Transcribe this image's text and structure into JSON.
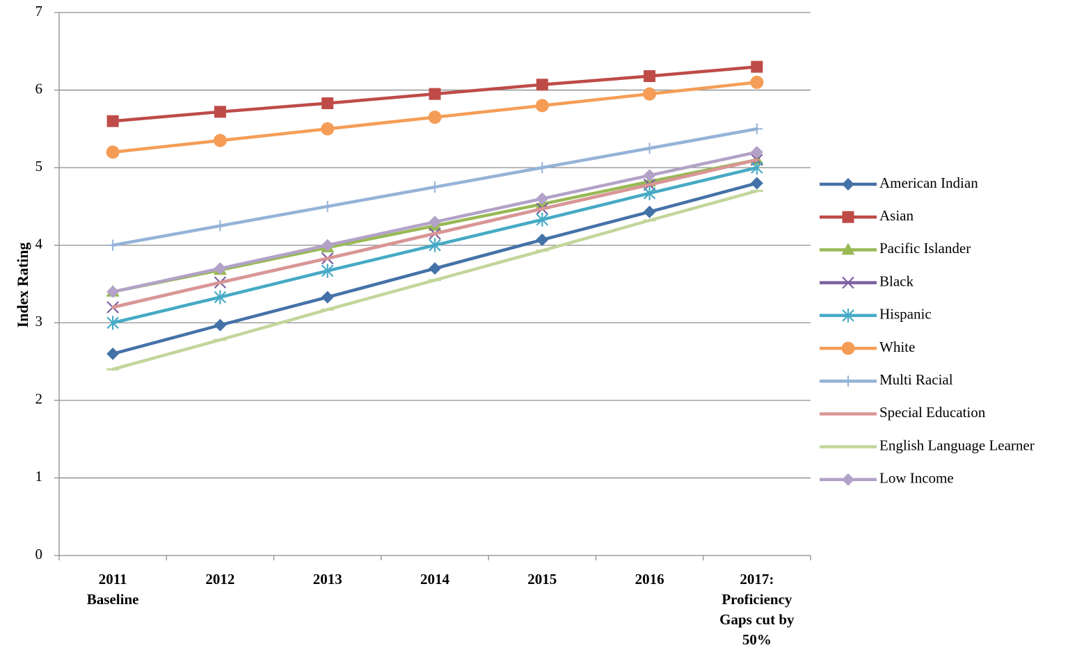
{
  "chart_data": {
    "type": "line",
    "ylabel": "Index Rating",
    "ylim": [
      0,
      7
    ],
    "yticks": [
      0,
      1,
      2,
      3,
      4,
      5,
      6,
      7
    ],
    "grid": "horizontal",
    "legend": "right",
    "categories": [
      [
        "2011",
        "Baseline"
      ],
      [
        "2012"
      ],
      [
        "2013"
      ],
      [
        "2014"
      ],
      [
        "2015"
      ],
      [
        "2016"
      ],
      [
        "2017:",
        "Proficiency",
        "Gaps cut by",
        "50%"
      ]
    ],
    "series": [
      {
        "name": "American Indian",
        "color": "#4472A8",
        "marker": "diamond",
        "values": [
          2.6,
          2.97,
          3.33,
          3.7,
          4.07,
          4.43,
          4.8
        ]
      },
      {
        "name": "Asian",
        "color": "#BE4B48",
        "marker": "square",
        "values": [
          5.6,
          5.72,
          5.83,
          5.95,
          6.07,
          6.18,
          6.3
        ]
      },
      {
        "name": "Pacific Islander",
        "color": "#98B954",
        "marker": "triangle",
        "values": [
          3.4,
          3.68,
          3.97,
          4.25,
          4.53,
          4.82,
          5.1
        ]
      },
      {
        "name": "Black",
        "color": "#7D60A0",
        "marker": "x",
        "values": [
          3.2,
          3.52,
          3.83,
          4.15,
          4.47,
          4.78,
          5.1
        ]
      },
      {
        "name": "Hispanic",
        "color": "#46AAC5",
        "marker": "star",
        "values": [
          3.0,
          3.33,
          3.67,
          4.0,
          4.33,
          4.67,
          5.0
        ]
      },
      {
        "name": "White",
        "color": "#F59D56",
        "marker": "circle",
        "values": [
          5.2,
          5.35,
          5.5,
          5.65,
          5.8,
          5.95,
          6.1
        ]
      },
      {
        "name": "Multi Racial",
        "color": "#95B3D7",
        "marker": "plus",
        "values": [
          4.0,
          4.25,
          4.5,
          4.75,
          5.0,
          5.25,
          5.5
        ]
      },
      {
        "name": "Special Education",
        "color": "#DA9694",
        "marker": "none",
        "values": [
          3.2,
          3.52,
          3.83,
          4.15,
          4.47,
          4.78,
          5.1
        ]
      },
      {
        "name": "English Language Learner",
        "color": "#C3D69B",
        "marker": "dash",
        "values": [
          2.4,
          2.78,
          3.17,
          3.55,
          3.93,
          4.32,
          4.7
        ]
      },
      {
        "name": "Low Income",
        "color": "#B3A2C7",
        "marker": "diamond",
        "values": [
          3.4,
          3.7,
          4.0,
          4.3,
          4.6,
          4.9,
          5.2
        ]
      }
    ]
  }
}
